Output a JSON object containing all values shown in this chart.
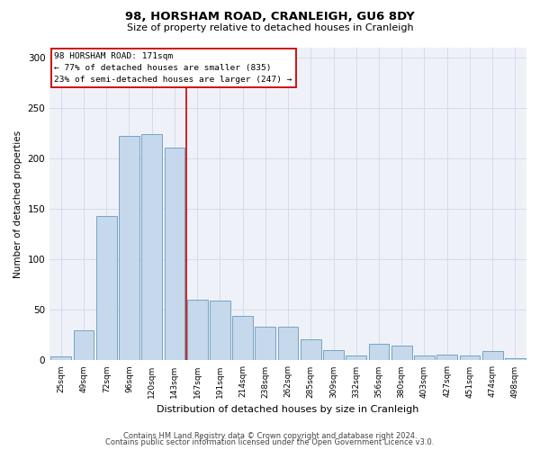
{
  "title": "98, HORSHAM ROAD, CRANLEIGH, GU6 8DY",
  "subtitle": "Size of property relative to detached houses in Cranleigh",
  "xlabel": "Distribution of detached houses by size in Cranleigh",
  "ylabel": "Number of detached properties",
  "categories": [
    "25sqm",
    "49sqm",
    "72sqm",
    "96sqm",
    "120sqm",
    "143sqm",
    "167sqm",
    "191sqm",
    "214sqm",
    "238sqm",
    "262sqm",
    "285sqm",
    "309sqm",
    "332sqm",
    "356sqm",
    "380sqm",
    "403sqm",
    "427sqm",
    "451sqm",
    "474sqm",
    "498sqm"
  ],
  "values": [
    4,
    30,
    143,
    222,
    224,
    211,
    60,
    59,
    44,
    33,
    33,
    21,
    10,
    5,
    16,
    15,
    5,
    6,
    5,
    9,
    2
  ],
  "bar_color": "#c5d8ec",
  "bar_edge_color": "#6699bb",
  "vline_x_index": 6,
  "vline_color": "#cc0000",
  "annotation_line1": "98 HORSHAM ROAD: 171sqm",
  "annotation_line2": "← 77% of detached houses are smaller (835)",
  "annotation_line3": "23% of semi-detached houses are larger (247) →",
  "annotation_box_color": "#cc0000",
  "ylim": [
    0,
    310
  ],
  "yticks": [
    0,
    50,
    100,
    150,
    200,
    250,
    300
  ],
  "grid_color": "#d4dcea",
  "background_color": "#eef2f8",
  "title_fontsize": 9.5,
  "subtitle_fontsize": 8,
  "footer1": "Contains HM Land Registry data © Crown copyright and database right 2024.",
  "footer2": "Contains public sector information licensed under the Open Government Licence v3.0."
}
